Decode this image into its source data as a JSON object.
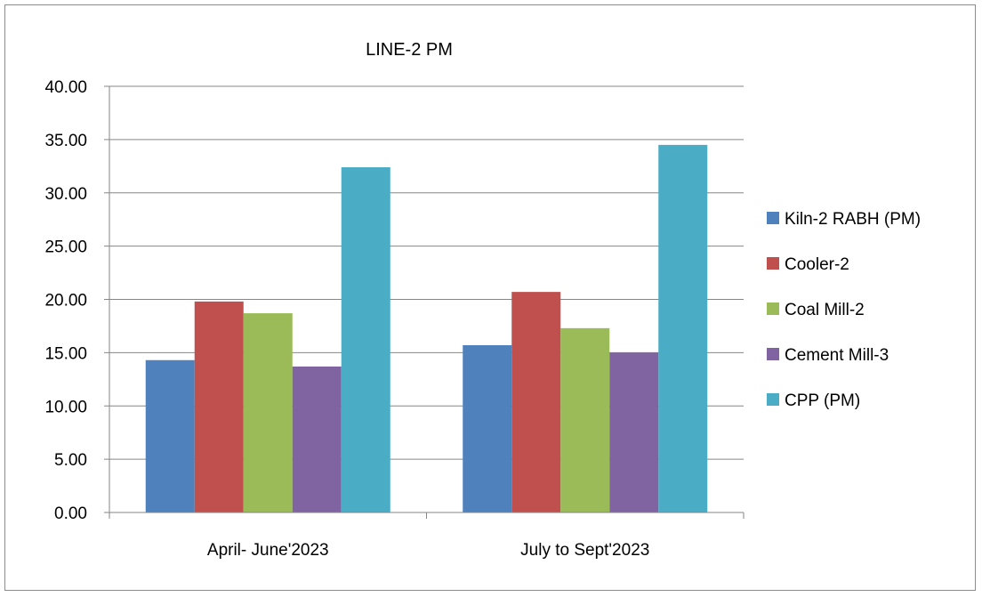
{
  "chart_data": {
    "type": "bar",
    "title": "LINE-2  PM",
    "categories": [
      "April- June'2023",
      "July to Sept'2023"
    ],
    "series": [
      {
        "name": "Kiln-2 RABH (PM)",
        "color": "#4f81bd",
        "values": [
          14.3,
          15.7
        ]
      },
      {
        "name": "Cooler-2",
        "color": "#c0504d",
        "values": [
          19.8,
          20.7
        ]
      },
      {
        "name": "Coal Mill-2",
        "color": "#9bbb59",
        "values": [
          18.7,
          17.3
        ]
      },
      {
        "name": "Cement Mill-3",
        "color": "#8064a2",
        "values": [
          13.7,
          15.0
        ]
      },
      {
        "name": "CPP (PM)",
        "color": "#4bacc6",
        "values": [
          32.4,
          34.5
        ]
      }
    ],
    "y_ticks": [
      "0.00",
      "5.00",
      "10.00",
      "15.00",
      "20.00",
      "25.00",
      "30.00",
      "35.00",
      "40.00"
    ],
    "ylim": [
      0,
      40
    ],
    "grid": true,
    "legend_position": "right"
  }
}
